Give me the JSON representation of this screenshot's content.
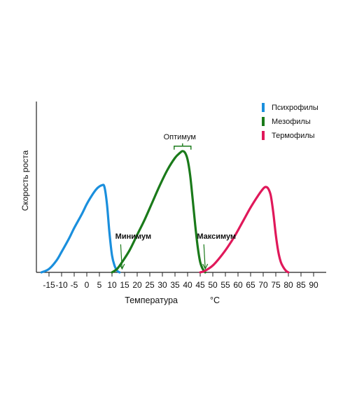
{
  "chart_data": {
    "type": "line",
    "xlabel": "Температура",
    "xunit": "°C",
    "ylabel": "Скорость роста",
    "xlim": [
      -20,
      95
    ],
    "ylim": [
      0,
      1.0
    ],
    "x_ticks": [
      -15,
      -10,
      -5,
      0,
      5,
      10,
      15,
      20,
      25,
      30,
      35,
      40,
      45,
      50,
      55,
      60,
      65,
      70,
      75,
      80,
      85,
      90
    ],
    "grid": false,
    "legend_position": "top-right",
    "series": [
      {
        "name": "Психрофилы",
        "color": "#1a8fdd",
        "x": [
          -18,
          -15,
          -12,
          -10,
          -7,
          -5,
          -2,
          0,
          2,
          4,
          6,
          7,
          8,
          9,
          10,
          11,
          12,
          13
        ],
        "y": [
          0.0,
          0.02,
          0.07,
          0.12,
          0.2,
          0.26,
          0.34,
          0.4,
          0.45,
          0.49,
          0.51,
          0.5,
          0.4,
          0.23,
          0.1,
          0.04,
          0.01,
          0.0
        ]
      },
      {
        "name": "Мезофилы",
        "color": "#1a7a1a",
        "x": [
          10,
          12,
          14,
          17,
          20,
          23,
          26,
          29,
          32,
          35,
          37,
          38,
          39,
          40,
          41,
          42,
          43,
          44,
          45,
          46,
          47
        ],
        "y": [
          0.0,
          0.02,
          0.06,
          0.13,
          0.22,
          0.31,
          0.41,
          0.51,
          0.6,
          0.67,
          0.7,
          0.71,
          0.7,
          0.66,
          0.57,
          0.43,
          0.28,
          0.15,
          0.06,
          0.02,
          0.0
        ]
      },
      {
        "name": "Термофилы",
        "color": "#e0185a",
        "x": [
          45,
          47,
          50,
          53,
          56,
          59,
          62,
          65,
          68,
          70,
          71,
          72,
          73,
          74,
          75,
          76,
          77,
          78,
          79,
          80
        ],
        "y": [
          0.0,
          0.01,
          0.04,
          0.09,
          0.15,
          0.22,
          0.3,
          0.38,
          0.45,
          0.49,
          0.5,
          0.49,
          0.45,
          0.35,
          0.22,
          0.12,
          0.06,
          0.03,
          0.01,
          0.0
        ]
      }
    ],
    "annotations": [
      {
        "text": "Минимум",
        "x": 14,
        "y": 0.0,
        "type": "arrow"
      },
      {
        "text": "Оптимум",
        "x": 38,
        "y": 0.71,
        "type": "bracket"
      },
      {
        "text": "Максимум",
        "x": 47,
        "y": 0.0,
        "type": "arrow"
      }
    ]
  }
}
